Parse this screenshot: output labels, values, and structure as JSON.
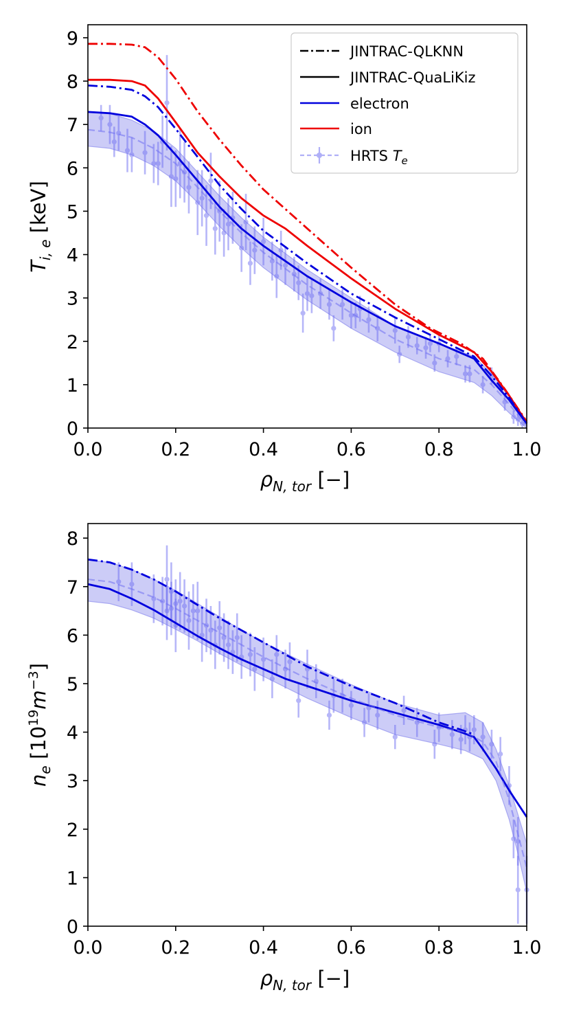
{
  "colors": {
    "electron": "#0000dd",
    "ion": "#ee0000",
    "hrts": "#6f6ff2",
    "band": "#8d8dee"
  },
  "legend": {
    "qlknn": "JINTRAC-QLKNN",
    "qualikiz": "JINTRAC-QuaLiKiz",
    "electron": "electron",
    "ion": "ion",
    "hrts_prefix": "HRTS ",
    "hrts_symbol": "T",
    "hrts_sub": "e"
  },
  "chart_data": [
    {
      "type": "line",
      "id": "temperature",
      "xlabel": {
        "symbol": "ρ",
        "sub": "N, tor",
        "unit": " [−]"
      },
      "ylabel": {
        "symbol": "T",
        "sub": "i, e",
        "unit": " [keV]"
      },
      "xlim": [
        0,
        1
      ],
      "ylim": [
        0,
        9.3
      ],
      "xticks": [
        "0.0",
        "0.2",
        "0.4",
        "0.6",
        "0.8",
        "1.0"
      ],
      "yticks": [
        "0",
        "1",
        "2",
        "3",
        "4",
        "5",
        "6",
        "7",
        "8",
        "9"
      ],
      "series": [
        {
          "name": "ion QLKNN",
          "color": "ion",
          "dash": "dashdot",
          "x": [
            0,
            0.05,
            0.1,
            0.13,
            0.16,
            0.2,
            0.25,
            0.3,
            0.35,
            0.4,
            0.5,
            0.6,
            0.7,
            0.78,
            0.85,
            0.9,
            0.95,
            1.0
          ],
          "y": [
            8.86,
            8.86,
            8.84,
            8.78,
            8.55,
            8.05,
            7.3,
            6.65,
            6.05,
            5.5,
            4.6,
            3.7,
            2.85,
            2.3,
            1.95,
            1.6,
            0.9,
            0.15
          ]
        },
        {
          "name": "ion QuaLiKiz",
          "color": "ion",
          "dash": "solid",
          "x": [
            0,
            0.05,
            0.1,
            0.13,
            0.16,
            0.2,
            0.25,
            0.3,
            0.35,
            0.4,
            0.45,
            0.5,
            0.6,
            0.7,
            0.8,
            0.88,
            0.92,
            0.96,
            1.0
          ],
          "y": [
            8.03,
            8.03,
            8.0,
            7.9,
            7.6,
            7.05,
            6.35,
            5.8,
            5.3,
            4.9,
            4.6,
            4.2,
            3.45,
            2.75,
            2.15,
            1.75,
            1.3,
            0.75,
            0.12
          ]
        },
        {
          "name": "electron QLKNN",
          "color": "electron",
          "dash": "dashdot",
          "x": [
            0,
            0.05,
            0.1,
            0.13,
            0.16,
            0.2,
            0.25,
            0.3,
            0.35,
            0.4,
            0.5,
            0.6,
            0.7,
            0.8,
            0.88,
            0.92,
            0.96,
            1.0
          ],
          "y": [
            7.9,
            7.87,
            7.8,
            7.65,
            7.4,
            6.9,
            6.25,
            5.6,
            5.05,
            4.55,
            3.8,
            3.1,
            2.55,
            2.05,
            1.65,
            1.2,
            0.7,
            0.1
          ]
        },
        {
          "name": "electron QuaLiKiz",
          "color": "electron",
          "dash": "solid",
          "x": [
            0,
            0.05,
            0.1,
            0.13,
            0.16,
            0.2,
            0.25,
            0.3,
            0.35,
            0.4,
            0.5,
            0.6,
            0.7,
            0.8,
            0.88,
            0.92,
            0.96,
            1.0
          ],
          "y": [
            7.29,
            7.26,
            7.18,
            7.0,
            6.75,
            6.3,
            5.7,
            5.1,
            4.6,
            4.2,
            3.5,
            2.9,
            2.35,
            1.95,
            1.6,
            1.1,
            0.65,
            0.1
          ]
        },
        {
          "name": "HRTS fit",
          "color": "hrts",
          "dash": "dashed",
          "x": [
            0,
            0.05,
            0.1,
            0.15,
            0.2,
            0.25,
            0.3,
            0.35,
            0.4,
            0.5,
            0.6,
            0.7,
            0.8,
            0.88,
            0.92,
            0.96,
            1.0
          ],
          "y": [
            6.88,
            6.82,
            6.7,
            6.45,
            6.1,
            5.55,
            5.0,
            4.5,
            4.05,
            3.3,
            2.65,
            2.05,
            1.6,
            1.35,
            1.0,
            0.55,
            0.05
          ]
        }
      ],
      "band": {
        "x": [
          0,
          0.05,
          0.1,
          0.15,
          0.2,
          0.25,
          0.3,
          0.35,
          0.4,
          0.5,
          0.6,
          0.7,
          0.8,
          0.88,
          0.92,
          0.96,
          1.0
        ],
        "upper": [
          7.3,
          7.25,
          7.1,
          6.85,
          6.45,
          5.9,
          5.35,
          4.85,
          4.4,
          3.65,
          3.0,
          2.35,
          1.95,
          1.65,
          1.25,
          0.75,
          0.15
        ],
        "lower": [
          6.5,
          6.45,
          6.3,
          6.05,
          5.7,
          5.2,
          4.65,
          4.15,
          3.7,
          2.95,
          2.3,
          1.75,
          1.3,
          1.05,
          0.75,
          0.35,
          0.0
        ]
      },
      "points": {
        "x": [
          0.03,
          0.05,
          0.06,
          0.07,
          0.09,
          0.1,
          0.13,
          0.15,
          0.16,
          0.17,
          0.18,
          0.19,
          0.2,
          0.21,
          0.22,
          0.23,
          0.25,
          0.26,
          0.27,
          0.28,
          0.29,
          0.3,
          0.31,
          0.32,
          0.33,
          0.35,
          0.36,
          0.37,
          0.38,
          0.4,
          0.42,
          0.43,
          0.44,
          0.45,
          0.47,
          0.48,
          0.49,
          0.5,
          0.51,
          0.53,
          0.55,
          0.56,
          0.58,
          0.6,
          0.61,
          0.62,
          0.64,
          0.66,
          0.7,
          0.71,
          0.73,
          0.75,
          0.77,
          0.78,
          0.79,
          0.8,
          0.82,
          0.84,
          0.86,
          0.87,
          0.9,
          0.92,
          0.95,
          0.97,
          0.98,
          0.99
        ],
        "y": [
          7.15,
          7.0,
          6.6,
          6.8,
          6.4,
          6.3,
          6.35,
          6.1,
          6.1,
          6.6,
          7.5,
          5.8,
          5.75,
          6.1,
          5.9,
          5.55,
          5.2,
          5.3,
          4.9,
          5.7,
          4.6,
          5.0,
          4.5,
          4.7,
          4.85,
          4.15,
          4.75,
          3.8,
          4.1,
          4.3,
          3.85,
          3.5,
          4.1,
          3.75,
          3.55,
          3.35,
          2.65,
          3.1,
          3.05,
          3.1,
          2.85,
          2.3,
          2.85,
          2.6,
          2.6,
          2.75,
          2.5,
          2.3,
          2.25,
          1.7,
          2.1,
          1.9,
          1.85,
          1.95,
          1.5,
          1.95,
          1.6,
          1.65,
          1.25,
          1.25,
          1.0,
          1.2,
          0.6,
          0.25,
          0.2,
          0.1
        ],
        "err": [
          0.3,
          0.45,
          0.35,
          0.4,
          0.5,
          0.4,
          0.5,
          0.45,
          0.5,
          0.6,
          1.1,
          0.7,
          0.65,
          0.8,
          0.7,
          0.6,
          0.75,
          0.65,
          0.7,
          0.65,
          0.6,
          0.7,
          0.55,
          0.6,
          0.6,
          0.55,
          0.65,
          0.5,
          0.55,
          0.55,
          0.45,
          0.5,
          0.45,
          0.45,
          0.4,
          0.4,
          0.45,
          0.4,
          0.4,
          0.35,
          0.35,
          0.3,
          0.35,
          0.3,
          0.3,
          0.3,
          0.3,
          0.3,
          0.3,
          0.2,
          0.25,
          0.2,
          0.25,
          0.2,
          0.2,
          0.2,
          0.2,
          0.2,
          0.2,
          0.2,
          0.2,
          0.2,
          0.2,
          0.15,
          0.15,
          0.1
        ]
      }
    },
    {
      "type": "line",
      "id": "density",
      "xlabel": {
        "symbol": "ρ",
        "sub": "N, tor",
        "unit": " [−]"
      },
      "ylabel": {
        "symbol": "n",
        "sub": "e",
        "unit_pre": " [10",
        "unit_sup1": "19",
        "unit_mid": "m",
        "unit_sup2": "−3",
        "unit_post": "]"
      },
      "xlim": [
        0,
        1
      ],
      "ylim": [
        0,
        8.3
      ],
      "xticks": [
        "0.0",
        "0.2",
        "0.4",
        "0.6",
        "0.8",
        "1.0"
      ],
      "yticks": [
        "0",
        "1",
        "2",
        "3",
        "4",
        "5",
        "6",
        "7",
        "8"
      ],
      "series": [
        {
          "name": "electron QLKNN",
          "color": "electron",
          "dash": "dashdot",
          "x": [
            0,
            0.05,
            0.1,
            0.15,
            0.2,
            0.25,
            0.3,
            0.35,
            0.4,
            0.45,
            0.5,
            0.6,
            0.7,
            0.8,
            0.85,
            0.88
          ],
          "y": [
            7.56,
            7.5,
            7.35,
            7.15,
            6.9,
            6.62,
            6.35,
            6.1,
            5.85,
            5.6,
            5.35,
            4.95,
            4.6,
            4.2,
            4.05,
            3.95
          ]
        },
        {
          "name": "electron QuaLiKiz",
          "color": "electron",
          "dash": "solid",
          "x": [
            0,
            0.05,
            0.1,
            0.15,
            0.2,
            0.25,
            0.3,
            0.35,
            0.4,
            0.45,
            0.5,
            0.6,
            0.7,
            0.8,
            0.85,
            0.88,
            0.9,
            0.93,
            0.96,
            1.0
          ],
          "y": [
            7.05,
            6.95,
            6.75,
            6.52,
            6.25,
            5.98,
            5.73,
            5.5,
            5.3,
            5.1,
            4.95,
            4.65,
            4.4,
            4.15,
            4.0,
            3.9,
            3.65,
            3.25,
            2.8,
            2.25
          ]
        },
        {
          "name": "HRTS fit",
          "color": "hrts",
          "dash": "dashed",
          "x": [
            0,
            0.05,
            0.1,
            0.15,
            0.2,
            0.25,
            0.3,
            0.35,
            0.4,
            0.5,
            0.6,
            0.7,
            0.8,
            0.86,
            0.9,
            0.93,
            0.96,
            0.98,
            1.0
          ],
          "y": [
            7.15,
            7.1,
            6.95,
            6.78,
            6.55,
            6.3,
            6.05,
            5.8,
            5.55,
            5.1,
            4.7,
            4.35,
            4.1,
            4.0,
            3.8,
            3.4,
            2.6,
            1.9,
            1.2
          ]
        }
      ],
      "band": {
        "x": [
          0,
          0.05,
          0.1,
          0.15,
          0.2,
          0.25,
          0.3,
          0.35,
          0.4,
          0.5,
          0.6,
          0.7,
          0.8,
          0.86,
          0.9,
          0.93,
          0.96,
          0.98,
          1.0
        ],
        "upper": [
          7.55,
          7.5,
          7.35,
          7.15,
          6.92,
          6.65,
          6.38,
          6.1,
          5.85,
          5.4,
          4.98,
          4.6,
          4.35,
          4.4,
          4.2,
          3.65,
          2.9,
          2.3,
          1.7
        ],
        "lower": [
          6.7,
          6.65,
          6.52,
          6.35,
          6.12,
          5.88,
          5.62,
          5.38,
          5.15,
          4.7,
          4.3,
          3.95,
          3.75,
          3.62,
          3.45,
          3.0,
          2.2,
          1.5,
          0.7
        ]
      },
      "points": {
        "x": [
          0.07,
          0.1,
          0.15,
          0.17,
          0.18,
          0.18,
          0.19,
          0.19,
          0.2,
          0.2,
          0.21,
          0.22,
          0.23,
          0.24,
          0.25,
          0.26,
          0.27,
          0.28,
          0.29,
          0.3,
          0.31,
          0.32,
          0.33,
          0.34,
          0.35,
          0.37,
          0.38,
          0.4,
          0.42,
          0.43,
          0.45,
          0.46,
          0.48,
          0.5,
          0.52,
          0.55,
          0.56,
          0.58,
          0.6,
          0.63,
          0.64,
          0.66,
          0.7,
          0.72,
          0.75,
          0.79,
          0.8,
          0.83,
          0.85,
          0.86,
          0.87,
          0.88,
          0.9,
          0.92,
          0.94,
          0.96,
          0.97,
          0.98,
          0.98,
          1.0
        ],
        "y": [
          7.1,
          7.05,
          6.75,
          6.7,
          7.15,
          6.5,
          6.9,
          6.55,
          6.65,
          6.2,
          6.7,
          6.6,
          6.3,
          6.5,
          6.5,
          6.0,
          6.2,
          6.1,
          5.8,
          6.15,
          5.95,
          5.8,
          5.65,
          5.95,
          5.55,
          5.6,
          5.3,
          5.5,
          5.1,
          5.6,
          5.3,
          5.45,
          4.65,
          5.3,
          5.05,
          4.35,
          4.75,
          4.75,
          4.55,
          4.2,
          4.5,
          4.35,
          3.9,
          4.45,
          4.2,
          3.75,
          4.1,
          3.95,
          3.85,
          4.05,
          3.9,
          4.05,
          3.9,
          3.75,
          3.55,
          2.9,
          1.8,
          1.75,
          0.75,
          0.75
        ],
        "err": [
          0.4,
          0.45,
          0.5,
          0.5,
          0.7,
          0.6,
          0.6,
          0.55,
          0.5,
          0.55,
          0.6,
          0.55,
          0.6,
          0.55,
          0.6,
          0.55,
          0.55,
          0.5,
          0.5,
          0.55,
          0.5,
          0.5,
          0.45,
          0.5,
          0.45,
          0.45,
          0.45,
          0.45,
          0.4,
          0.4,
          0.4,
          0.4,
          0.35,
          0.4,
          0.35,
          0.3,
          0.35,
          0.35,
          0.3,
          0.3,
          0.3,
          0.3,
          0.25,
          0.3,
          0.3,
          0.3,
          0.3,
          0.3,
          0.3,
          0.3,
          0.3,
          0.3,
          0.3,
          0.3,
          0.35,
          0.4,
          0.4,
          0.5,
          0.7,
          0.7
        ]
      }
    }
  ]
}
